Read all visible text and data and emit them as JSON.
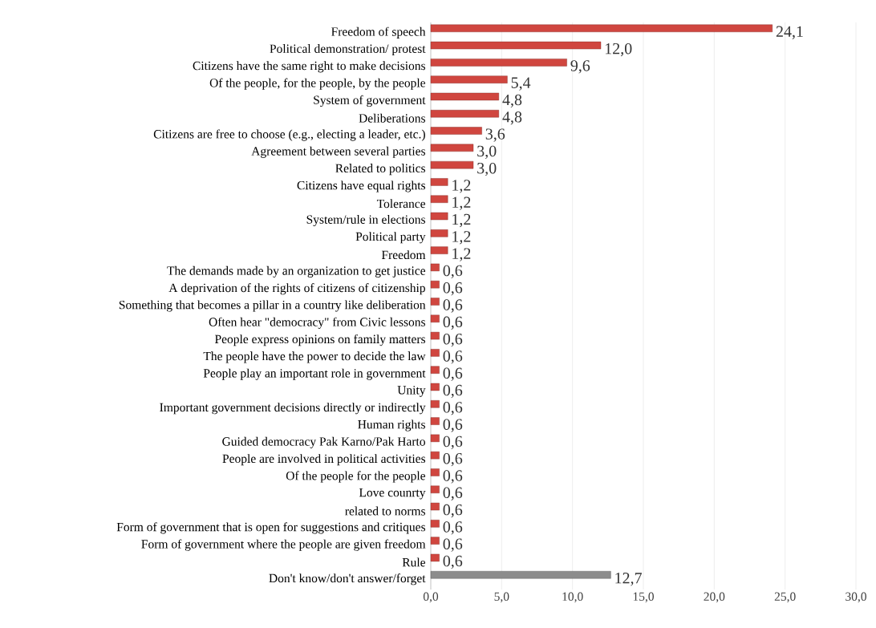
{
  "chart_data": {
    "type": "bar",
    "orientation": "horizontal",
    "grid": "x",
    "categories": [
      "Freedom of speech",
      "Political demonstration/ protest",
      "Citizens have the same right to make decisions",
      "Of the people, for the people, by the people",
      "System of government",
      "Deliberations",
      "Citizens are free to choose (e.g.,  electing a leader, etc.)",
      "Agreement between several parties",
      "Related to politics",
      "Citizens have equal rights",
      "Tolerance",
      "System/rule in elections",
      "Political party",
      "Freedom",
      "The demands made by an organization to get justice",
      "A deprivation of the rights of citizens of citizenship",
      "Something that becomes a pillar in a country like deliberation",
      "Often hear \"democracy\" from Civic lessons",
      "People express opinions on family matters",
      "The people have the power to decide the law",
      "People play an important role in government",
      "Unity",
      "Important government decisions directly or indirectly",
      "Human rights",
      "Guided democracy Pak Karno/Pak Harto",
      "People are involved in political activities",
      "Of the people for the people",
      "Love counrty",
      "related to norms",
      "Form of government that is open for suggestions and critiques",
      "Form of government where the people are given freedom",
      "Rule",
      "Don't know/don't answer/forget"
    ],
    "values": [
      24.1,
      12.0,
      9.6,
      5.4,
      4.8,
      4.8,
      3.6,
      3.0,
      3.0,
      1.2,
      1.2,
      1.2,
      1.2,
      1.2,
      0.6,
      0.6,
      0.6,
      0.6,
      0.6,
      0.6,
      0.6,
      0.6,
      0.6,
      0.6,
      0.6,
      0.6,
      0.6,
      0.6,
      0.6,
      0.6,
      0.6,
      0.6,
      12.7
    ],
    "value_labels": [
      "24,1",
      "12,0",
      "9,6",
      "5,4",
      "4,8",
      "4,8",
      "3,6",
      "3,0",
      "3,0",
      "1,2",
      "1,2",
      "1,2",
      "1,2",
      "1,2",
      "0,6",
      "0,6",
      "0,6",
      "0,6",
      "0,6",
      "0,6",
      "0,6",
      "0,6",
      "0,6",
      "0,6",
      "0,6",
      "0,6",
      "0,6",
      "0,6",
      "0,6",
      "0,6",
      "0,6",
      "0,6",
      "12,7"
    ],
    "colors": [
      "#d0463f",
      "#d0463f",
      "#d0463f",
      "#d0463f",
      "#d0463f",
      "#d0463f",
      "#d0463f",
      "#d0463f",
      "#d0463f",
      "#d0463f",
      "#d0463f",
      "#d0463f",
      "#d0463f",
      "#d0463f",
      "#d0463f",
      "#d0463f",
      "#d0463f",
      "#d0463f",
      "#d0463f",
      "#d0463f",
      "#d0463f",
      "#d0463f",
      "#d0463f",
      "#d0463f",
      "#d0463f",
      "#d0463f",
      "#d0463f",
      "#d0463f",
      "#d0463f",
      "#d0463f",
      "#d0463f",
      "#d0463f",
      "#8c8c8c"
    ],
    "xlim": [
      0,
      30
    ],
    "xticks": [
      {
        "value": 0,
        "label": "0,0"
      },
      {
        "value": 5,
        "label": "5,0"
      },
      {
        "value": 10,
        "label": "10,0"
      },
      {
        "value": 15,
        "label": "15,0"
      },
      {
        "value": 20,
        "label": "20,0"
      },
      {
        "value": 25,
        "label": "25,0"
      },
      {
        "value": 30,
        "label": "30,0"
      }
    ]
  }
}
